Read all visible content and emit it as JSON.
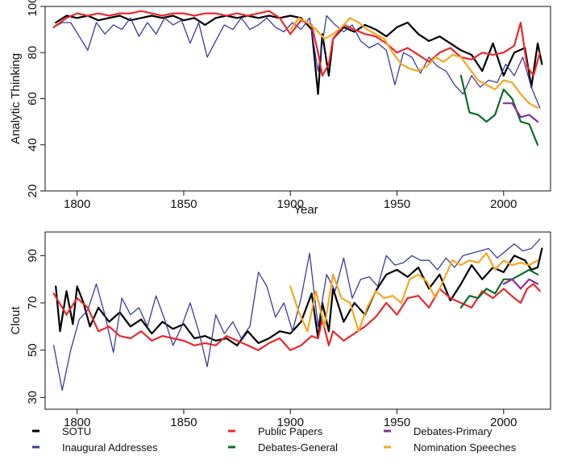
{
  "chart_data": [
    {
      "type": "line",
      "panel": "top",
      "xlabel": "Year",
      "ylabel": "Analytic Thinking",
      "xlim": [
        1785,
        2022
      ],
      "ylim": [
        20,
        100
      ],
      "xticks": [
        1800,
        1850,
        1900,
        1950,
        2000
      ],
      "yticks": [
        20,
        40,
        60,
        80,
        100
      ],
      "grid": false,
      "series": [
        {
          "name": "SOTU",
          "color": "#000000",
          "x": [
            1790,
            1795,
            1800,
            1805,
            1810,
            1815,
            1820,
            1825,
            1830,
            1835,
            1840,
            1845,
            1850,
            1855,
            1860,
            1865,
            1870,
            1875,
            1880,
            1885,
            1890,
            1895,
            1900,
            1905,
            1910,
            1913,
            1915,
            1918,
            1920,
            1925,
            1930,
            1935,
            1940,
            1945,
            1950,
            1955,
            1960,
            1965,
            1970,
            1975,
            1980,
            1985,
            1990,
            1995,
            2000,
            2005,
            2010,
            2013,
            2016,
            2018
          ],
          "y": [
            93,
            96,
            95,
            96,
            94,
            95,
            96,
            94,
            95,
            96,
            95,
            96,
            94,
            95,
            92,
            95,
            96,
            95,
            96,
            95,
            96,
            95,
            96,
            95,
            90,
            62,
            88,
            70,
            86,
            91,
            89,
            92,
            90,
            87,
            91,
            93,
            88,
            85,
            87,
            84,
            81,
            79,
            72,
            84,
            70,
            80,
            82,
            65,
            84,
            75
          ]
        },
        {
          "name": "Inaugural Addresses",
          "color": "#3a3a9c",
          "x": [
            1789,
            1793,
            1797,
            1801,
            1805,
            1809,
            1813,
            1817,
            1821,
            1825,
            1829,
            1833,
            1837,
            1841,
            1845,
            1849,
            1853,
            1857,
            1861,
            1865,
            1869,
            1873,
            1877,
            1881,
            1885,
            1889,
            1893,
            1897,
            1901,
            1905,
            1909,
            1913,
            1917,
            1921,
            1925,
            1929,
            1933,
            1937,
            1941,
            1945,
            1949,
            1953,
            1957,
            1961,
            1965,
            1969,
            1973,
            1977,
            1981,
            1985,
            1989,
            1993,
            1997,
            2001,
            2005,
            2009,
            2013,
            2017
          ],
          "y": [
            91,
            93,
            93,
            87,
            81,
            93,
            88,
            92,
            90,
            95,
            87,
            93,
            88,
            95,
            92,
            94,
            84,
            93,
            78,
            85,
            92,
            90,
            95,
            90,
            92,
            95,
            91,
            89,
            93,
            90,
            95,
            72,
            96,
            92,
            89,
            92,
            85,
            82,
            84,
            81,
            66,
            80,
            78,
            71,
            78,
            74,
            72,
            66,
            62,
            70,
            65,
            68,
            67,
            75,
            70,
            78,
            65,
            56
          ]
        },
        {
          "name": "Public Papers",
          "color": "#e8292e",
          "x": [
            1789,
            1795,
            1800,
            1805,
            1810,
            1815,
            1820,
            1825,
            1830,
            1835,
            1840,
            1845,
            1850,
            1855,
            1860,
            1865,
            1870,
            1875,
            1880,
            1885,
            1890,
            1895,
            1900,
            1905,
            1910,
            1913,
            1915,
            1918,
            1920,
            1925,
            1930,
            1935,
            1940,
            1945,
            1950,
            1955,
            1960,
            1965,
            1970,
            1975,
            1980,
            1985,
            1990,
            1995,
            2000,
            2005,
            2008,
            2011,
            2014,
            2017
          ],
          "y": [
            91,
            95,
            97,
            96,
            97,
            96,
            97,
            97,
            98,
            97,
            96,
            97,
            97,
            96,
            97,
            97,
            96,
            97,
            96,
            97,
            98,
            95,
            88,
            94,
            92,
            80,
            70,
            75,
            86,
            92,
            90,
            88,
            87,
            84,
            80,
            82,
            79,
            76,
            80,
            82,
            78,
            77,
            80,
            79,
            80,
            83,
            93,
            74,
            70,
            80
          ]
        },
        {
          "name": "Debates-General",
          "color": "#0b6b2a",
          "x": [
            1980,
            1984,
            1988,
            1992,
            1996,
            2000,
            2004,
            2008,
            2012,
            2016
          ],
          "y": [
            70,
            54,
            53,
            50,
            53,
            64,
            60,
            50,
            49,
            40
          ]
        },
        {
          "name": "Debates-Primary",
          "color": "#8a2d9e",
          "x": [
            2000,
            2004,
            2008,
            2012,
            2016
          ],
          "y": [
            58,
            58,
            52,
            53,
            50
          ]
        },
        {
          "name": "Nomination Speeches",
          "color": "#f5a623",
          "x": [
            1900,
            1904,
            1908,
            1912,
            1916,
            1920,
            1924,
            1928,
            1932,
            1936,
            1940,
            1944,
            1948,
            1952,
            1956,
            1960,
            1964,
            1968,
            1972,
            1976,
            1980,
            1984,
            1988,
            1992,
            1996,
            2000,
            2004,
            2008,
            2012,
            2016
          ],
          "y": [
            90,
            95,
            93,
            90,
            86,
            88,
            91,
            95,
            93,
            90,
            88,
            86,
            80,
            75,
            73,
            72,
            74,
            78,
            76,
            79,
            78,
            73,
            68,
            66,
            64,
            68,
            67,
            62,
            58,
            56
          ]
        }
      ]
    },
    {
      "type": "line",
      "panel": "bottom",
      "xlabel": "",
      "ylabel": "Clout",
      "xlim": [
        1785,
        2022
      ],
      "ylim": [
        25,
        100
      ],
      "xticks": [
        1800,
        1850,
        1900,
        1950,
        2000
      ],
      "yticks": [
        30,
        50,
        70,
        90
      ],
      "grid": false,
      "series": [
        {
          "name": "SOTU",
          "color": "#000000",
          "x": [
            1790,
            1792,
            1795,
            1798,
            1800,
            1803,
            1806,
            1810,
            1815,
            1820,
            1825,
            1830,
            1835,
            1840,
            1845,
            1850,
            1855,
            1860,
            1865,
            1870,
            1875,
            1880,
            1885,
            1890,
            1895,
            1900,
            1905,
            1910,
            1913,
            1915,
            1918,
            1920,
            1925,
            1930,
            1935,
            1940,
            1945,
            1950,
            1955,
            1960,
            1965,
            1970,
            1975,
            1980,
            1985,
            1990,
            1995,
            2000,
            2005,
            2010,
            2013,
            2016,
            2018
          ],
          "y": [
            77,
            58,
            75,
            61,
            77,
            70,
            60,
            68,
            62,
            66,
            60,
            63,
            57,
            62,
            59,
            61,
            55,
            56,
            54,
            55,
            52,
            58,
            53,
            55,
            58,
            57,
            62,
            74,
            55,
            70,
            58,
            76,
            62,
            70,
            65,
            75,
            82,
            84,
            81,
            85,
            76,
            82,
            71,
            78,
            86,
            80,
            85,
            83,
            90,
            88,
            84,
            85,
            93
          ]
        },
        {
          "name": "Inaugural Addresses",
          "color": "#3a3a9c",
          "x": [
            1789,
            1793,
            1797,
            1801,
            1805,
            1809,
            1813,
            1817,
            1821,
            1825,
            1829,
            1833,
            1837,
            1841,
            1845,
            1849,
            1853,
            1857,
            1861,
            1865,
            1869,
            1873,
            1877,
            1881,
            1885,
            1889,
            1893,
            1897,
            1901,
            1905,
            1909,
            1913,
            1917,
            1921,
            1925,
            1929,
            1933,
            1937,
            1941,
            1945,
            1949,
            1953,
            1957,
            1961,
            1965,
            1969,
            1973,
            1977,
            1981,
            1985,
            1989,
            1993,
            1997,
            2001,
            2005,
            2009,
            2013,
            2017
          ],
          "y": [
            52,
            33,
            50,
            63,
            67,
            78,
            65,
            49,
            72,
            65,
            68,
            60,
            73,
            63,
            52,
            60,
            70,
            58,
            43,
            65,
            57,
            62,
            55,
            60,
            83,
            77,
            64,
            70,
            58,
            72,
            91,
            60,
            82,
            75,
            89,
            72,
            80,
            81,
            77,
            90,
            86,
            87,
            90,
            88,
            88,
            84,
            89,
            85,
            90,
            91,
            92,
            93,
            89,
            92,
            95,
            92,
            93,
            97
          ]
        },
        {
          "name": "Public Papers",
          "color": "#e8292e",
          "x": [
            1789,
            1795,
            1800,
            1805,
            1810,
            1815,
            1820,
            1825,
            1830,
            1835,
            1840,
            1845,
            1850,
            1855,
            1860,
            1865,
            1870,
            1875,
            1880,
            1885,
            1890,
            1895,
            1900,
            1905,
            1910,
            1913,
            1915,
            1918,
            1920,
            1925,
            1930,
            1935,
            1940,
            1945,
            1950,
            1955,
            1960,
            1965,
            1970,
            1975,
            1980,
            1985,
            1990,
            1995,
            2000,
            2005,
            2008,
            2011,
            2014,
            2017
          ],
          "y": [
            74,
            65,
            72,
            68,
            58,
            60,
            56,
            55,
            58,
            54,
            56,
            55,
            54,
            52,
            53,
            52,
            56,
            54,
            52,
            50,
            53,
            55,
            50,
            52,
            56,
            55,
            63,
            52,
            58,
            54,
            57,
            60,
            64,
            70,
            65,
            72,
            73,
            68,
            76,
            72,
            70,
            68,
            75,
            72,
            76,
            72,
            70,
            76,
            78,
            75
          ]
        },
        {
          "name": "Debates-General",
          "color": "#0b6b2a",
          "x": [
            1980,
            1984,
            1988,
            1992,
            1996,
            2000,
            2004,
            2008,
            2012,
            2016
          ],
          "y": [
            68,
            73,
            72,
            76,
            74,
            80,
            80,
            82,
            84,
            82
          ]
        },
        {
          "name": "Debates-Primary",
          "color": "#8a2d9e",
          "x": [
            2000,
            2004,
            2008,
            2012,
            2016
          ],
          "y": [
            78,
            80,
            76,
            80,
            78
          ]
        },
        {
          "name": "Nomination Speeches",
          "color": "#f5a623",
          "x": [
            1900,
            1904,
            1908,
            1912,
            1916,
            1920,
            1924,
            1928,
            1932,
            1936,
            1940,
            1944,
            1948,
            1952,
            1956,
            1960,
            1964,
            1968,
            1972,
            1976,
            1980,
            1984,
            1988,
            1992,
            1996,
            2000,
            2004,
            2008,
            2012,
            2016
          ],
          "y": [
            77,
            66,
            58,
            75,
            60,
            82,
            72,
            70,
            58,
            68,
            75,
            72,
            73,
            70,
            80,
            82,
            79,
            72,
            80,
            88,
            86,
            88,
            87,
            91,
            84,
            88,
            86,
            87,
            86,
            88
          ]
        }
      ]
    }
  ],
  "legend": {
    "placement": "bottom",
    "items": [
      {
        "name": "SOTU",
        "color": "#000000"
      },
      {
        "name": "Public Papers",
        "color": "#e8292e"
      },
      {
        "name": "Debates-Primary",
        "color": "#8a2d9e"
      },
      {
        "name": "Inaugural Addresses",
        "color": "#3a3a9c"
      },
      {
        "name": "Debates-General",
        "color": "#0b6b2a"
      },
      {
        "name": "Nomination Speeches",
        "color": "#f5a623"
      }
    ]
  }
}
